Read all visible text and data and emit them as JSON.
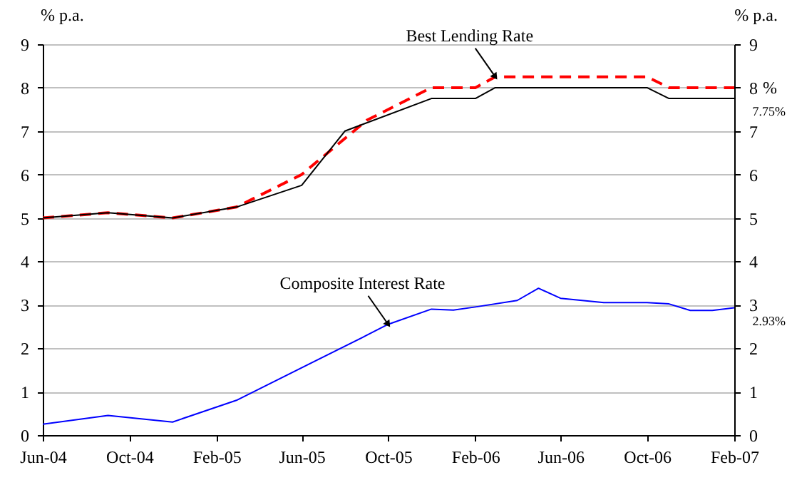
{
  "chart_data": {
    "type": "line",
    "ylabel": "% p.a.",
    "y2label": "% p.a.",
    "xlim": [
      "2004-06",
      "2007-02"
    ],
    "xticks": [
      {
        "value": "2004-06",
        "label": "Jun-04"
      },
      {
        "value": "2004-10",
        "label": "Oct-04"
      },
      {
        "value": "2005-02",
        "label": "Feb-05"
      },
      {
        "value": "2005-06",
        "label": "Jun-05"
      },
      {
        "value": "2005-10",
        "label": "Oct-05"
      },
      {
        "value": "2006-02",
        "label": "Feb-06"
      },
      {
        "value": "2006-06",
        "label": "Jun-06"
      },
      {
        "value": "2006-10",
        "label": "Oct-06"
      },
      {
        "value": "2007-02",
        "label": "Feb-07"
      }
    ],
    "ylim": [
      0,
      9
    ],
    "yticks": [
      0,
      1,
      2,
      3,
      4,
      5,
      6,
      7,
      8,
      9
    ],
    "y2lim": [
      0,
      9
    ],
    "y2ticks": [
      0,
      1,
      2,
      3,
      4,
      5,
      6,
      7,
      8,
      9
    ],
    "grid": "y",
    "series": [
      {
        "color": "#ff0000",
        "line_style": "dashed",
        "x": [
          "2004-06",
          "2004-09",
          "2004-12",
          "2005-03",
          "2005-06",
          "2005-09",
          "2005-12",
          "2006-02",
          "2006-03",
          "2006-10",
          "2006-11",
          "2007-02"
        ],
        "values": [
          5.0,
          5.12,
          5.0,
          5.25,
          6.0,
          7.25,
          8.0,
          8.0,
          8.25,
          8.25,
          8.0,
          8.0
        ]
      },
      {
        "color": "#000000",
        "line_style": "solid",
        "x": [
          "2004-06",
          "2004-09",
          "2004-12",
          "2005-03",
          "2005-06",
          "2005-08",
          "2005-12",
          "2006-02",
          "2006-03",
          "2006-10",
          "2006-11",
          "2007-02"
        ],
        "values": [
          5.0,
          5.12,
          5.0,
          5.25,
          5.75,
          7.0,
          7.75,
          7.75,
          8.0,
          8.0,
          7.75,
          7.75
        ]
      },
      {
        "color": "#0000ff",
        "line_style": "solid",
        "x": [
          "2004-06",
          "2004-09",
          "2004-12",
          "2005-03",
          "2005-09",
          "2005-10",
          "2005-12",
          "2006-01",
          "2006-02",
          "2006-04",
          "2006-05",
          "2006-06",
          "2006-08",
          "2006-10",
          "2006-11",
          "2006-12",
          "2007-01",
          "2007-02"
        ],
        "values": [
          0.25,
          0.45,
          0.3,
          0.8,
          2.3,
          2.55,
          2.9,
          2.88,
          2.95,
          3.1,
          3.38,
          3.15,
          3.05,
          3.05,
          3.02,
          2.87,
          2.87,
          2.93
        ]
      }
    ],
    "annotations": [
      {
        "text": "Best Lending Rate",
        "x": "2006-03",
        "y": 8.25
      },
      {
        "text": "Composite Interest Rate",
        "x": "2005-10",
        "y": 2.55
      },
      {
        "text": "%",
        "x": "2007-02",
        "y": 8
      },
      {
        "text": "7.75%",
        "x": "2007-02",
        "y": 7.75
      },
      {
        "text": "2.93%",
        "x": "2007-02",
        "y": 2.93
      }
    ]
  }
}
